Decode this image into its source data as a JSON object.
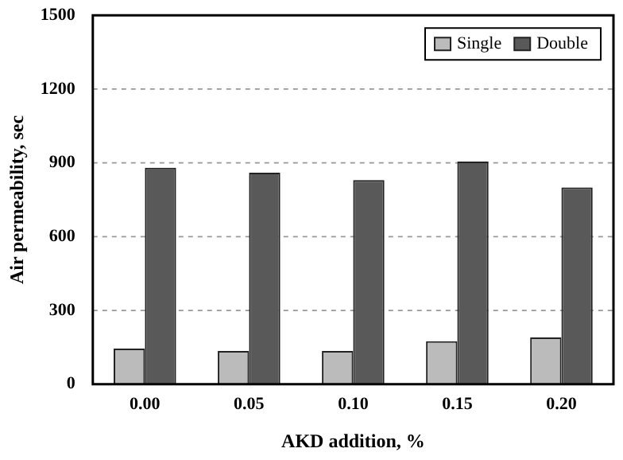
{
  "chart_data": {
    "type": "bar",
    "xlabel": "AKD addition, %",
    "ylabel": "Air permeability, sec",
    "categories": [
      "0.00",
      "0.05",
      "0.10",
      "0.15",
      "0.20"
    ],
    "series": [
      {
        "name": "Single",
        "color": "#bbbbbb",
        "values": [
          145,
          135,
          135,
          175,
          190
        ]
      },
      {
        "name": "Double",
        "color": "#595959",
        "values": [
          880,
          860,
          830,
          905,
          800
        ]
      }
    ],
    "ylim": [
      0,
      1500
    ],
    "yticks": [
      0,
      300,
      600,
      900,
      1200,
      1500
    ],
    "grid": "y",
    "legend": "top right"
  }
}
